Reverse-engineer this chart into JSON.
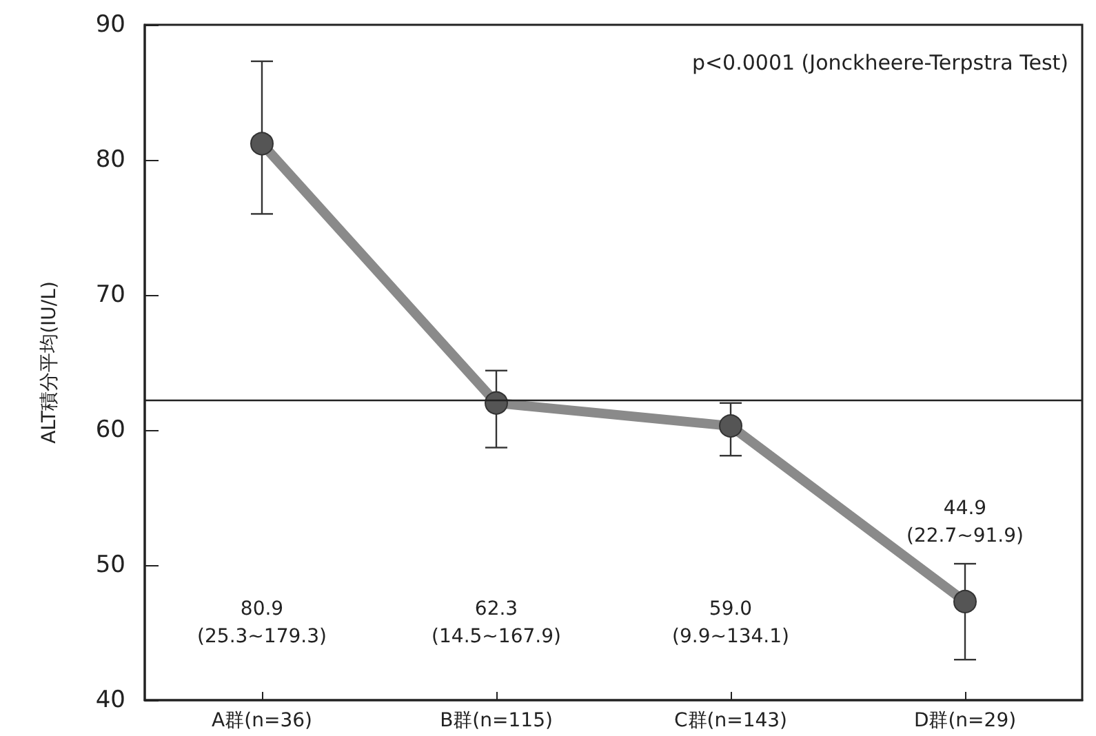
{
  "chart_data": {
    "type": "line",
    "ylabel": "ALT積分平均(IU/L)",
    "categories": [
      "A群(n=36)",
      "B群(n=115)",
      "C群(n=143)",
      "D群(n=29)"
    ],
    "series": [
      {
        "color": "#8a8a8a",
        "values": [
          81.2,
          62.0,
          60.3,
          47.3
        ],
        "errors": [
          [
            76.0,
            87.3
          ],
          [
            58.7,
            64.4
          ],
          [
            58.1,
            62.0
          ],
          [
            43.0,
            50.1
          ]
        ]
      }
    ],
    "ylim": [
      40,
      90
    ],
    "yticks": [
      40,
      50,
      60,
      70,
      80,
      90
    ],
    "ref_lines": [
      {
        "axis": "y",
        "value": 62.2,
        "color": "#222222"
      }
    ],
    "annotations": [
      "p<0.0001 (Jonckheere-Terpstra Test)",
      "80.9\n(25.3~179.3)",
      "62.3\n(14.5~167.9)",
      "59.0\n(9.9~134.1)",
      "44.9\n(22.7~91.9)"
    ],
    "marker": "circle",
    "line_style": "solid",
    "grid": false
  }
}
